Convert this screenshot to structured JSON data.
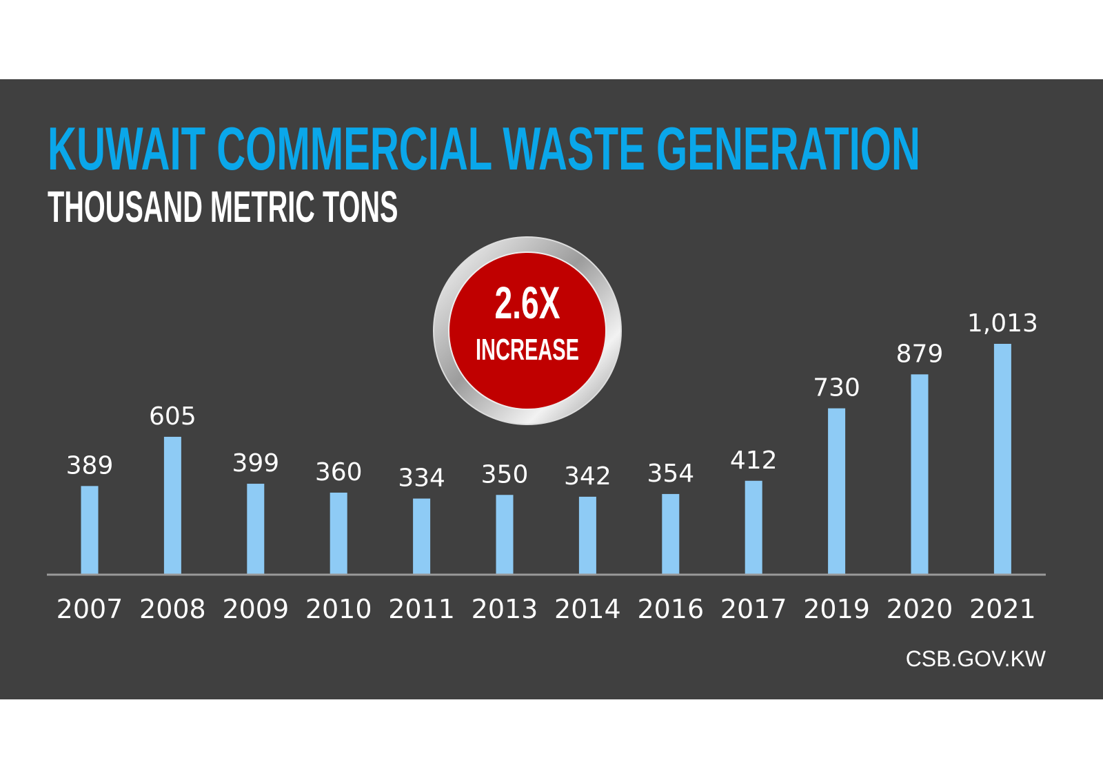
{
  "chart_data": {
    "type": "bar",
    "title": "KUWAIT COMMERCIAL WASTE GENERATION",
    "subtitle": "THOUSAND METRIC TONS",
    "categories": [
      "2007",
      "2008",
      "2009",
      "2010",
      "2011",
      "2013",
      "2014",
      "2016",
      "2017",
      "2019",
      "2020",
      "2021"
    ],
    "values": [
      389,
      605,
      399,
      360,
      334,
      350,
      342,
      354,
      412,
      730,
      879,
      1013
    ],
    "value_labels": [
      "389",
      "605",
      "399",
      "360",
      "334",
      "350",
      "342",
      "354",
      "412",
      "730",
      "879",
      "1,013"
    ],
    "ylim": [
      0,
      1013
    ],
    "grid": false,
    "callout": {
      "value": "2.6X",
      "label": "INCREASE"
    },
    "source": "CSB.GOV.KW",
    "colors": {
      "background": "#404040",
      "bar": "#8ecbf5",
      "title": "#0aa7ea",
      "callout": "#c00000",
      "axis": "#9a9a9a"
    }
  }
}
